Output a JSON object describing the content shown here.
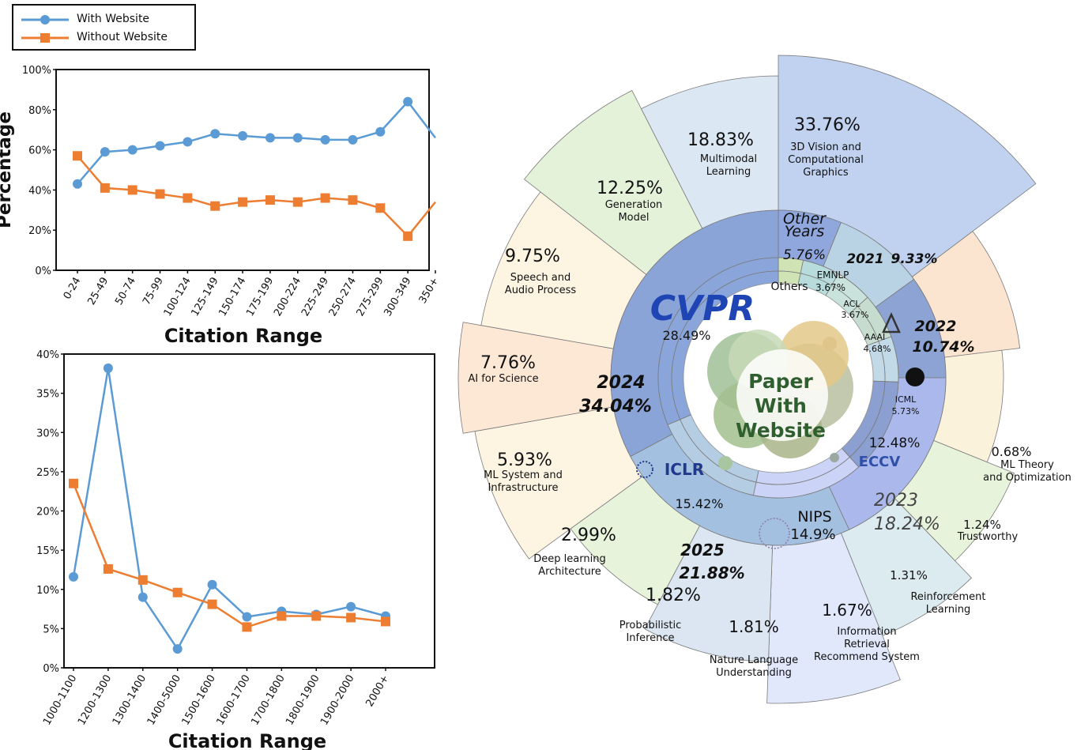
{
  "legend": {
    "items": [
      {
        "label": "With Website",
        "color": "#5b9bd5",
        "marker": "circle"
      },
      {
        "label": "Without Website",
        "color": "#ed7d31",
        "marker": "square"
      }
    ]
  },
  "chart_data": [
    {
      "type": "line",
      "title": "",
      "xlabel": "Citation Range",
      "ylabel": "Percentage",
      "categories": [
        "0-24",
        "25-49",
        "50-74",
        "75-99",
        "100-124",
        "125-149",
        "150-174",
        "175-199",
        "200-224",
        "225-249",
        "250-274",
        "275-299",
        "300-349",
        "350+"
      ],
      "ylim": [
        0,
        100
      ],
      "yticks": [
        "0%",
        "20%",
        "40%",
        "60%",
        "80%",
        "100%"
      ],
      "series": [
        {
          "name": "With Website",
          "color": "#5b9bd5",
          "values": [
            43,
            59,
            60,
            62,
            64,
            68,
            67,
            66,
            66,
            65,
            65,
            69,
            84,
            66
          ]
        },
        {
          "name": "Without Website",
          "color": "#ed7d31",
          "values": [
            57,
            41,
            40,
            38,
            36,
            32,
            34,
            35,
            34,
            36,
            35,
            31,
            17,
            34
          ]
        }
      ]
    },
    {
      "type": "line",
      "title": "",
      "xlabel": "Citation Range",
      "ylabel": "",
      "categories": [
        "1000-1100",
        "1200-1300",
        "1300-1400",
        "1400-5000",
        "1500-1600",
        "1600-1700",
        "1700-1800",
        "1800-1900",
        "1900-2000",
        "2000+"
      ],
      "ylim": [
        0,
        40
      ],
      "yticks": [
        "0%",
        "5%",
        "10%",
        "15%",
        "20%",
        "25%",
        "30%",
        "35%",
        "40%"
      ],
      "series": [
        {
          "name": "With Website",
          "color": "#5b9bd5",
          "values": [
            11.6,
            38.2,
            9.0,
            2.4,
            10.6,
            6.5,
            7.2,
            6.8,
            7.8,
            6.6
          ]
        },
        {
          "name": "Without Website",
          "color": "#ed7d31",
          "values": [
            23.5,
            12.6,
            11.2,
            9.6,
            8.1,
            5.2,
            6.6,
            6.6,
            6.4,
            5.9
          ]
        }
      ]
    },
    {
      "type": "pie",
      "title": "Paper With Website",
      "center_label": [
        "Paper",
        "With",
        "Website"
      ],
      "rings": [
        {
          "name": "years",
          "slices": [
            {
              "label": "Other Years",
              "value": 5.76,
              "text": "5.76%",
              "color": "#8fa7dc"
            },
            {
              "label": "2021",
              "value": 9.33,
              "text": "9.33%",
              "color": "#b9d3e4"
            },
            {
              "label": "2022",
              "value": 10.74,
              "text": "10.74%",
              "color": "#8da3d4"
            },
            {
              "label": "2023",
              "value": 18.24,
              "text": "18.24%",
              "color": "#aab8ec"
            },
            {
              "label": "2025",
              "value": 21.88,
              "text": "21.88%",
              "color": "#a4c0e0"
            },
            {
              "label": "2024",
              "value": 34.04,
              "text": "34.04%",
              "color": "#8aa4d8"
            }
          ]
        },
        {
          "name": "venues",
          "slices": [
            {
              "label": "Others",
              "value": 3.67,
              "text": "",
              "color": "#cfe3b5"
            },
            {
              "label": "EMNLP",
              "value": 3.67,
              "text": "3.67%",
              "color": "#b8dcdc"
            },
            {
              "label": "ACL",
              "value": 3.67,
              "text": "3.67%",
              "color": "#c9e2dc"
            },
            {
              "label": "AAAI",
              "value": 4.68,
              "text": "4.68%",
              "color": "#c6dcce"
            },
            {
              "label": "ICML",
              "value": 5.73,
              "text": "5.73%",
              "color": "#c2dae8"
            },
            {
              "label": "ECCV",
              "value": 12.48,
              "text": "12.48%",
              "color": "#8b9fd0"
            },
            {
              "label": "NIPS",
              "value": 14.9,
              "text": "14.9%",
              "color": "#cbd3f7"
            },
            {
              "label": "ICLR",
              "value": 15.42,
              "text": "15.42%",
              "color": "#b4cde3"
            },
            {
              "label": "CVPR",
              "value": 28.49,
              "text": "28.49%",
              "color": "#8aa5da"
            }
          ]
        },
        {
          "name": "topics",
          "slices": [
            {
              "label": "3D Vision and Computational Graphics",
              "value": 33.76,
              "text": "33.76%",
              "color": "#c0d2f0"
            },
            {
              "label": "ML Theory and Optimization",
              "value": 0.68,
              "text": "0.68%",
              "color": "#fbe5d0"
            },
            {
              "label": "Trustworthy",
              "value": 1.24,
              "text": "1.24%",
              "color": "#fbf2dc"
            },
            {
              "label": "Reinforcement Learning",
              "value": 1.31,
              "text": "1.31%",
              "color": "#e8f3dc"
            },
            {
              "label": "Information Retrieval Recommend System",
              "value": 1.67,
              "text": "1.67%",
              "color": "#dcebef"
            },
            {
              "label": "Nature Language Understanding",
              "value": 1.81,
              "text": "1.81%",
              "color": "#e1e8fb"
            },
            {
              "label": "Probabilistic Inference",
              "value": 1.82,
              "text": "1.82%",
              "color": "#dbe6f2"
            },
            {
              "label": "Deep learning Architecture",
              "value": 2.99,
              "text": "2.99%",
              "color": "#e8f3dc"
            },
            {
              "label": "ML System and Infrastructure",
              "value": 5.93,
              "text": "5.93%",
              "color": "#fdf4e2"
            },
            {
              "label": "AI for Science",
              "value": 7.76,
              "text": "7.76%",
              "color": "#fde8d6"
            },
            {
              "label": "Speech and Audio Process",
              "value": 9.75,
              "text": "9.75%",
              "color": "#fdf4e2"
            },
            {
              "label": "Generation Model",
              "value": 12.25,
              "text": "12.25%",
              "color": "#e5f2da"
            },
            {
              "label": "Multimodal Learning",
              "value": 18.83,
              "text": "18.83%",
              "color": "#dbe7f3"
            }
          ]
        }
      ]
    }
  ]
}
